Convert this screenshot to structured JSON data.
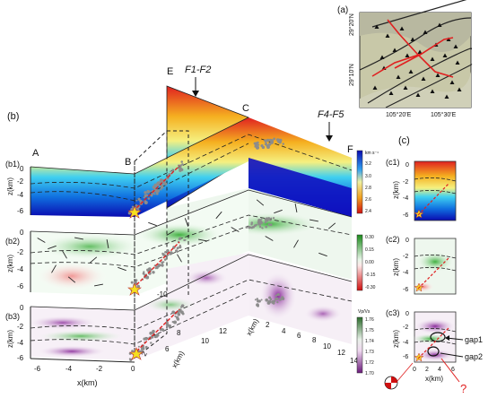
{
  "panel_labels": {
    "a": "(a)",
    "b": "(b)",
    "b1": "(b1)",
    "b2": "(b2)",
    "b3": "(b3)",
    "c": "(c)",
    "c1": "(c1)",
    "c2": "(c2)",
    "c3": "(c3)"
  },
  "profile_points": {
    "A": "A",
    "B": "B",
    "C": "C",
    "E": "E",
    "F": "F"
  },
  "faults": {
    "f1f2": "F1-F2",
    "f4f5": "F4-F5"
  },
  "map": {
    "lat_labels": [
      "29°20'N",
      "29°10'N"
    ],
    "lon_labels": [
      "105°20'E",
      "105°30'E"
    ]
  },
  "axes": {
    "z_label": "z(km)",
    "x_label": "x(km)",
    "z_ticks": [
      "0",
      "-2",
      "-4",
      "-6"
    ],
    "x_ticks_left": [
      "-6",
      "-4",
      "-2",
      "0"
    ],
    "x_ticks_right_b3": [
      "2",
      "4",
      "6",
      "8",
      "10",
      "12",
      "14"
    ],
    "x_ticks_middle": [
      "0",
      "2",
      "4",
      "6",
      "8",
      "10",
      "12"
    ],
    "side_ticks": [
      "-10"
    ],
    "c_x_ticks": [
      "0",
      "2",
      "4",
      "6"
    ]
  },
  "colorbars": {
    "vp": {
      "unit": "km s⁻¹",
      "ticks": [
        "3.2",
        "3.0",
        "2.8",
        "2.6",
        "2.4"
      ]
    },
    "dv": {
      "ticks": [
        "0.30",
        "0.15",
        "0.00",
        "-0.15",
        "-0.30"
      ]
    },
    "vpvs": {
      "unit": "Vp/Vs",
      "ticks": [
        "1.76",
        "1.75",
        "1.74",
        "1.73",
        "1.72",
        "1.70"
      ]
    }
  },
  "annotations": {
    "gap1": "gap1",
    "gap2": "gap2",
    "question": "?"
  },
  "colors": {
    "vp_high": "#1010c8",
    "vp_mid": "#30c0f0",
    "vp_low": "#e82020",
    "green": "#2ea82e",
    "purple": "#7a2a8a",
    "seismicity": "#8c8c8c"
  }
}
